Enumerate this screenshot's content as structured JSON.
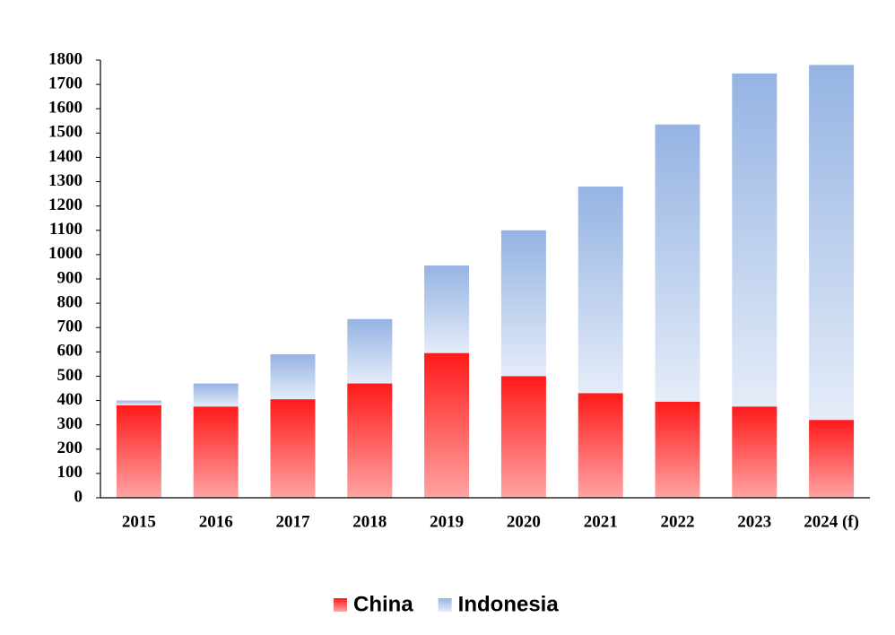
{
  "chart_data": {
    "type": "stacked-bar",
    "categories": [
      "2015",
      "2016",
      "2017",
      "2018",
      "2019",
      "2020",
      "2021",
      "2022",
      "2023",
      "2024 (f)"
    ],
    "series": [
      {
        "name": "China",
        "color": "#ff1a1a",
        "values": [
          380,
          375,
          405,
          470,
          595,
          500,
          430,
          395,
          375,
          320
        ]
      },
      {
        "name": "Indonesia",
        "color": "#95b3e3",
        "values": [
          20,
          95,
          185,
          265,
          360,
          600,
          850,
          1140,
          1370,
          1460
        ]
      }
    ],
    "ylim": [
      0,
      1800
    ],
    "yticks": [
      0,
      100,
      200,
      300,
      400,
      500,
      600,
      700,
      800,
      900,
      1000,
      1100,
      1200,
      1300,
      1400,
      1500,
      1600,
      1700,
      1800
    ],
    "legend": "bottom"
  }
}
